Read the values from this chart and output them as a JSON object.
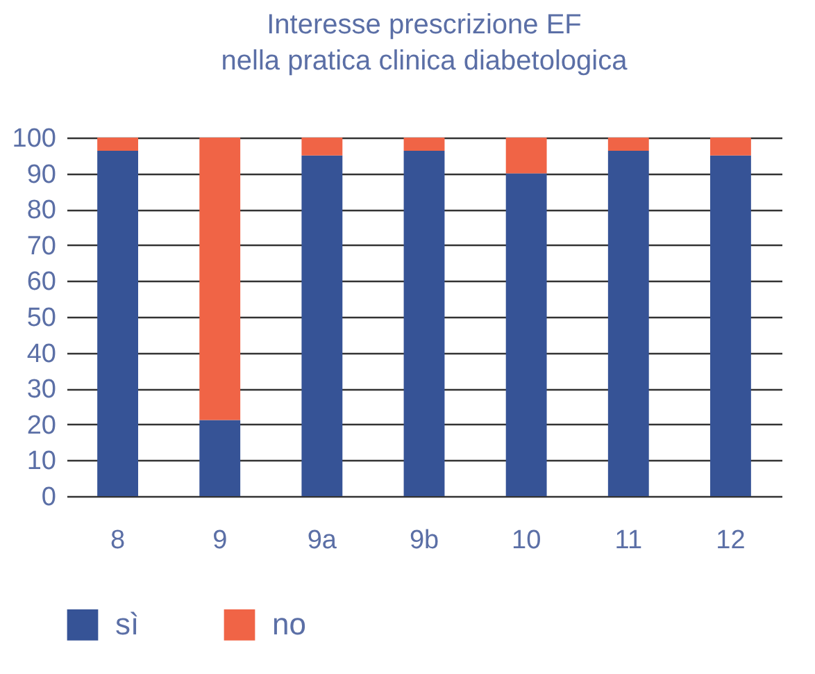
{
  "chart_data": {
    "type": "bar",
    "title": "Interesse prescrizione EF\nnella pratica clinica diabetologica",
    "categories": [
      "8",
      "9",
      "9a",
      "9b",
      "10",
      "11",
      "12"
    ],
    "stacked": true,
    "series": [
      {
        "name": "sì",
        "color": "#365396",
        "values": [
          96.3,
          21.2,
          95,
          96.3,
          90,
          96.3,
          95
        ]
      },
      {
        "name": "no",
        "color": "#f06446",
        "values": [
          3.7,
          78.8,
          5,
          3.7,
          10,
          3.7,
          5
        ]
      }
    ],
    "ylim": [
      0,
      100
    ],
    "yticks": [
      0,
      10,
      20,
      30,
      40,
      50,
      60,
      70,
      80,
      90,
      100
    ],
    "grid": "y",
    "legend": "bottom"
  }
}
